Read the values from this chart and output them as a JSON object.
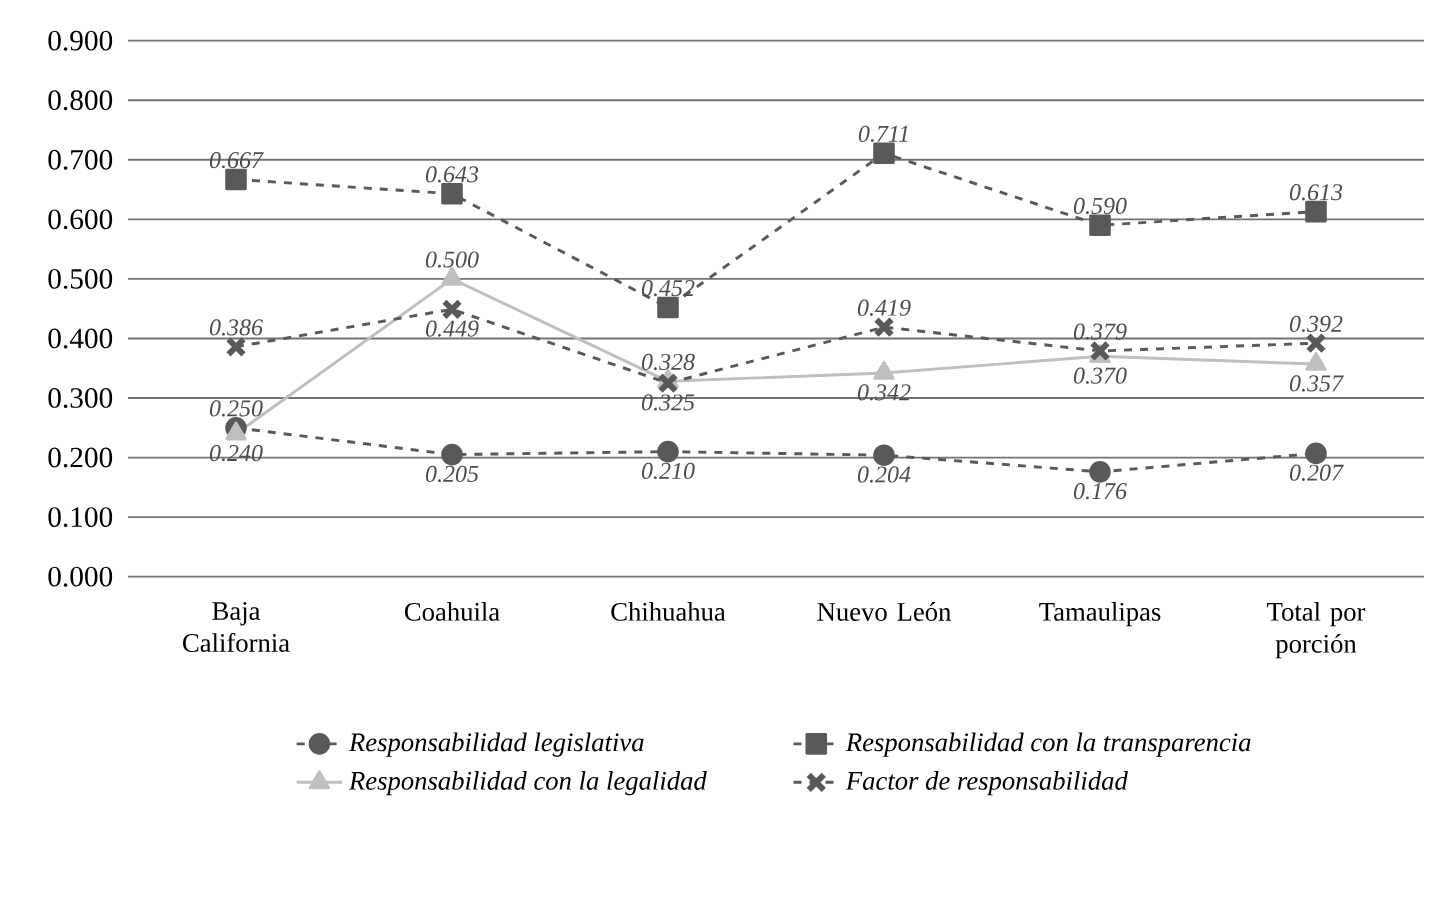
{
  "chart_data": {
    "type": "line",
    "categories": [
      "Baja California",
      "Coahuila",
      "Chihuahua",
      "Nuevo León",
      "Tamaulipas",
      "Total por porción"
    ],
    "series": [
      {
        "name": "Responsabilidad legislativa",
        "color": "#595959",
        "marker": "circle",
        "line_style": "dashed",
        "values": [
          0.25,
          0.205,
          0.21,
          0.204,
          0.176,
          0.207
        ],
        "value_labels": [
          "0.250",
          "0.205",
          "0.210",
          "0.204",
          "0.176",
          "0.207"
        ]
      },
      {
        "name": "Responsabilidad con la transparencia",
        "color": "#595959",
        "marker": "square",
        "line_style": "dashed",
        "values": [
          0.667,
          0.643,
          0.452,
          0.711,
          0.59,
          0.613
        ],
        "value_labels": [
          "0.667",
          "0.643",
          "0.452",
          "0.711",
          "0.590",
          "0.613"
        ]
      },
      {
        "name": "Responsabilidad con la legalidad",
        "color": "#bfbfbf",
        "marker": "triangle",
        "line_style": "solid",
        "values": [
          0.24,
          0.5,
          0.328,
          0.342,
          0.37,
          0.357
        ],
        "value_labels": [
          "0.240",
          "0.500",
          "0.328",
          "0.342",
          "0.370",
          "0.357"
        ]
      },
      {
        "name": "Factor de responsabilidad",
        "color": "#595959",
        "marker": "cross",
        "line_style": "dashed",
        "values": [
          0.386,
          0.449,
          0.325,
          0.419,
          0.379,
          0.392
        ],
        "value_labels": [
          "0.386",
          "0.449",
          "0.325",
          "0.419",
          "0.379",
          "0.392"
        ]
      }
    ],
    "ylim": [
      0,
      0.9
    ],
    "yticks": [
      {
        "value": 0,
        "label": "0.000"
      },
      {
        "value": 0.1,
        "label": "0.100"
      },
      {
        "value": 0.2,
        "label": "0.200"
      },
      {
        "value": 0.3,
        "label": "0.300"
      },
      {
        "value": 0.4,
        "label": "0.400"
      },
      {
        "value": 0.5,
        "label": "0.500"
      },
      {
        "value": 0.6,
        "label": "0.600"
      },
      {
        "value": 0.7,
        "label": "0.700"
      },
      {
        "value": 0.8,
        "label": "0.800"
      },
      {
        "value": 0.9,
        "label": "0.900"
      }
    ],
    "grid": "y",
    "legend": "bottom"
  }
}
